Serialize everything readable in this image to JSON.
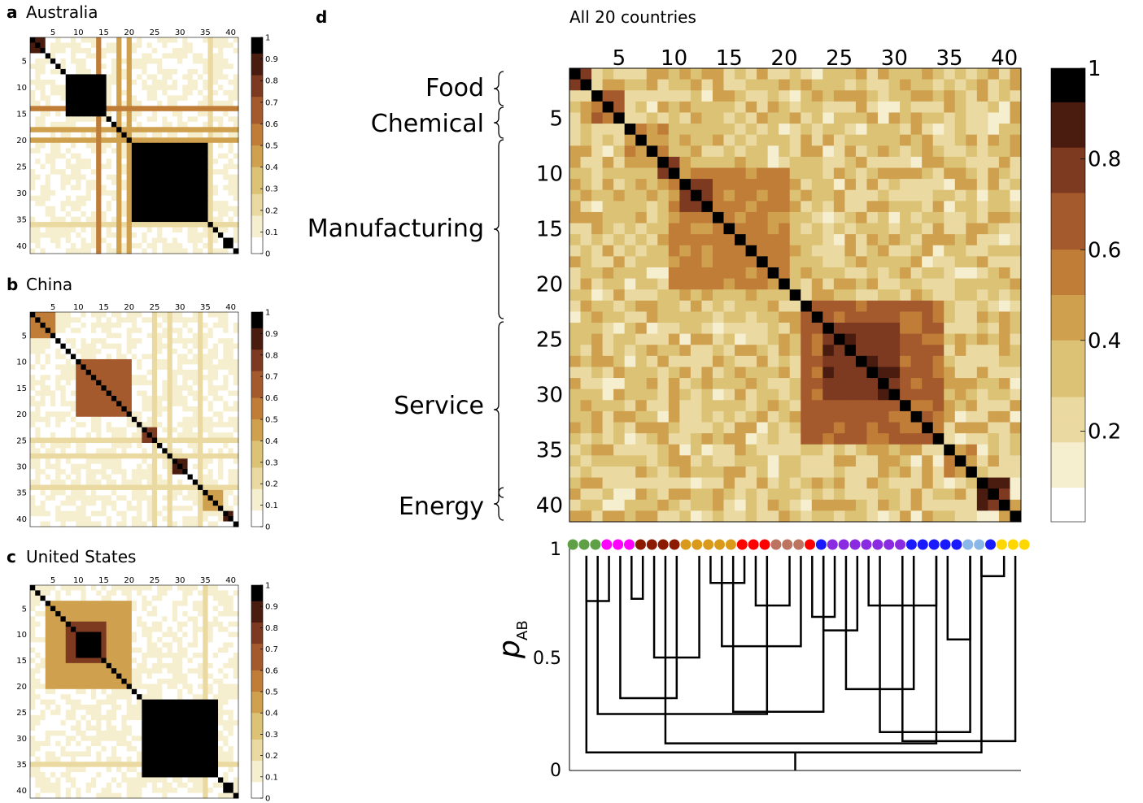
{
  "cmap": [
    "#ffffff",
    "#f6efcf",
    "#ead9a0",
    "#dcc275",
    "#cfa04e",
    "#c07d38",
    "#a55a2d",
    "#7d3a20",
    "#4a1c10",
    "#000000"
  ],
  "bracket_color": "#000000",
  "group_colors": {
    "food": "#5fa046",
    "chemical": "#ff00ff",
    "manufacturing_a": "#8b1a00",
    "manufacturing_b": "#d99a1c",
    "manufacturing_c": "#ff0000",
    "manufacturing_d": "#bc7460",
    "service_a": "#1a1aff",
    "service_b": "#8a2be2",
    "service_c": "#89b7e8",
    "energy": "#ffd700"
  },
  "panels": {
    "a": {
      "letter": "a",
      "title": "Australia"
    },
    "b": {
      "letter": "b",
      "title": "China"
    },
    "c": {
      "letter": "c",
      "title": "United States"
    },
    "d": {
      "letter": "d",
      "title": "All 20 countries"
    }
  },
  "sector_labels": [
    "Food",
    "Chemical",
    "Manufacturing",
    "Service",
    "Energy"
  ],
  "dendrogram": {
    "ylabel_main": "p",
    "ylabel_sub": "AB",
    "yticks": [
      "0",
      "0.5",
      "1"
    ]
  },
  "chart_data": [
    {
      "type": "heatmap",
      "panel": "a",
      "title": "Australia",
      "xticks": [
        "5",
        "10",
        "15",
        "20",
        "25",
        "30",
        "35",
        "40"
      ],
      "yticks": [
        "5",
        "10",
        "15",
        "20",
        "25",
        "30",
        "35",
        "40"
      ],
      "colorbar_ticks": [
        "0",
        "0.1",
        "0.2",
        "0.3",
        "0.4",
        "0.5",
        "0.6",
        "0.7",
        "0.8",
        "0.9",
        "1"
      ],
      "vmin": 0,
      "vmax": 1,
      "n": 41,
      "blocks": [
        [
          1,
          3,
          0.85
        ],
        [
          8,
          15,
          1.0
        ],
        [
          21,
          35,
          1.0
        ],
        [
          39,
          40,
          1.0
        ]
      ],
      "lines": [
        [
          14,
          0.95
        ],
        [
          18,
          0.7
        ],
        [
          20,
          0.7
        ],
        [
          36,
          0.3
        ]
      ]
    },
    {
      "type": "heatmap",
      "panel": "b",
      "title": "China",
      "xticks": [
        "5",
        "10",
        "15",
        "20",
        "25",
        "30",
        "35",
        "40"
      ],
      "yticks": [
        "5",
        "10",
        "15",
        "20",
        "25",
        "30",
        "35",
        "40"
      ],
      "colorbar_ticks": [
        "0",
        "0.1",
        "0.2",
        "0.3",
        "0.4",
        "0.5",
        "0.6",
        "0.7",
        "0.8",
        "0.9",
        "1"
      ],
      "vmin": 0,
      "vmax": 1,
      "n": 41,
      "blocks": [
        [
          1,
          5,
          0.6
        ],
        [
          10,
          20,
          0.65
        ],
        [
          23,
          25,
          0.8
        ],
        [
          29,
          31,
          0.85
        ],
        [
          35,
          38,
          0.4
        ],
        [
          39,
          40,
          0.9
        ]
      ],
      "lines": [
        [
          25,
          0.35
        ],
        [
          28,
          0.3
        ],
        [
          34,
          0.35
        ]
      ]
    },
    {
      "type": "heatmap",
      "panel": "c",
      "title": "United States",
      "xticks": [
        "5",
        "10",
        "15",
        "20",
        "25",
        "30",
        "35",
        "40"
      ],
      "yticks": [
        "5",
        "10",
        "15",
        "20",
        "25",
        "30",
        "35",
        "40"
      ],
      "colorbar_ticks": [
        "0",
        "0.1",
        "0.2",
        "0.3",
        "0.4",
        "0.5",
        "0.6",
        "0.7",
        "0.8",
        "0.9",
        "1"
      ],
      "vmin": 0,
      "vmax": 1,
      "n": 41,
      "blocks": [
        [
          4,
          20,
          0.4
        ],
        [
          8,
          15,
          0.75
        ],
        [
          10,
          14,
          1.0
        ],
        [
          23,
          37,
          1.0
        ],
        [
          39,
          40,
          1.0
        ]
      ],
      "lines": [
        [
          35,
          0.3
        ]
      ]
    },
    {
      "type": "heatmap",
      "panel": "d",
      "title": "All 20 countries",
      "xticks": [
        "5",
        "10",
        "15",
        "20",
        "25",
        "30",
        "35",
        "40"
      ],
      "yticks": [
        "5",
        "10",
        "15",
        "20",
        "25",
        "30",
        "35",
        "40"
      ],
      "colorbar_ticks": [
        "0.2",
        "0.4",
        "0.6",
        "0.8",
        "1"
      ],
      "vmin": 0,
      "vmax": 1,
      "n": 41,
      "blocks": [
        [
          1,
          2,
          0.85
        ],
        [
          3,
          5,
          0.7
        ],
        [
          6,
          9,
          0.55
        ],
        [
          9,
          10,
          0.85
        ],
        [
          10,
          20,
          0.6
        ],
        [
          11,
          13,
          0.85
        ],
        [
          22,
          34,
          0.7
        ],
        [
          24,
          30,
          0.85
        ],
        [
          35,
          37,
          0.55
        ],
        [
          38,
          40,
          0.9
        ]
      ],
      "lines": []
    }
  ]
}
